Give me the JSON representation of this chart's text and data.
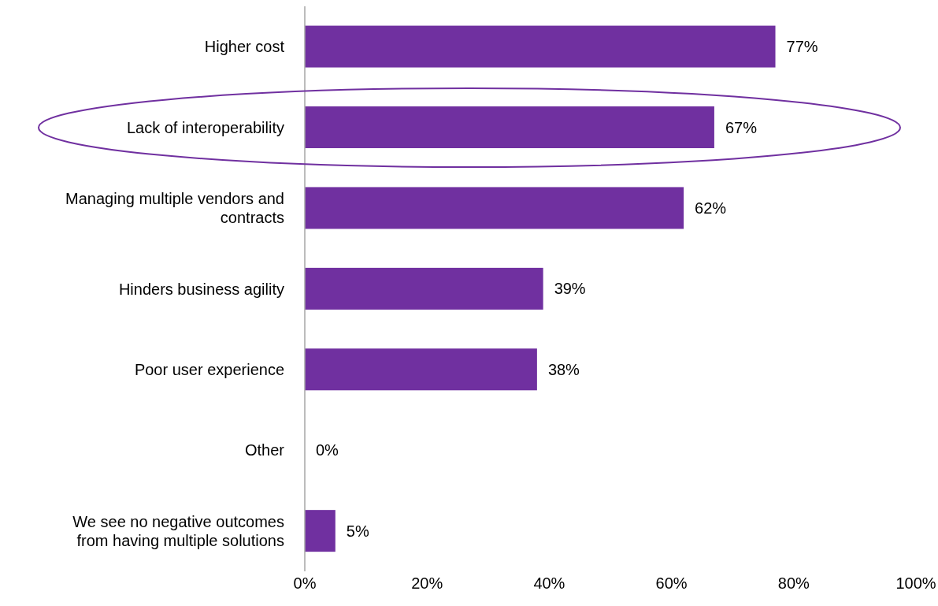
{
  "chart_data": {
    "type": "bar",
    "orientation": "horizontal",
    "categories": [
      "Higher cost",
      "Lack of interoperability",
      "Managing multiple vendors and contracts",
      "Hinders business agility",
      "Poor user experience",
      "Other",
      "We see no negative outcomes from having multiple solutions"
    ],
    "values": [
      77,
      67,
      62,
      39,
      38,
      0,
      5
    ],
    "color": "#7030a0",
    "value_labels": [
      "77%",
      "67%",
      "62%",
      "39%",
      "38%",
      "0%",
      "5%"
    ],
    "xlim": [
      0,
      100
    ],
    "xticks": [
      {
        "value": 0,
        "label": "0%"
      },
      {
        "value": 20,
        "label": "20%"
      },
      {
        "value": 40,
        "label": "40%"
      },
      {
        "value": 60,
        "label": "60%"
      },
      {
        "value": 80,
        "label": "80%"
      },
      {
        "value": 100,
        "label": "100%"
      }
    ]
  }
}
